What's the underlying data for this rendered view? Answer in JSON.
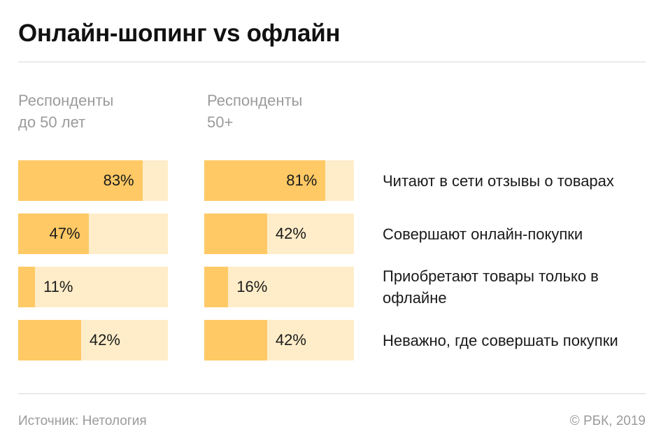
{
  "title": "Онлайн-шопинг vs офлайн",
  "groups": [
    {
      "label": "Респонденты\nдо 50 лет"
    },
    {
      "label": "Респонденты\n50+"
    }
  ],
  "colors": {
    "fill": "#FFC965",
    "track": "#FFEDC9"
  },
  "chart_data": {
    "type": "bar",
    "orientation": "horizontal",
    "categories": [
      "Читают в сети отзывы о товарах",
      "Совершают онлайн-покупки",
      "Приобретают товары только в офлайне",
      "Неважно, где совершать покупки"
    ],
    "series": [
      {
        "name": "Респонденты до 50 лет",
        "values": [
          83,
          47,
          11,
          42
        ]
      },
      {
        "name": "Респонденты 50+",
        "values": [
          81,
          42,
          16,
          42
        ]
      }
    ],
    "value_suffix": "%",
    "xlim": [
      0,
      100
    ]
  },
  "footer": {
    "source": "Источник: Нетология",
    "copyright": "© РБК, 2019"
  }
}
